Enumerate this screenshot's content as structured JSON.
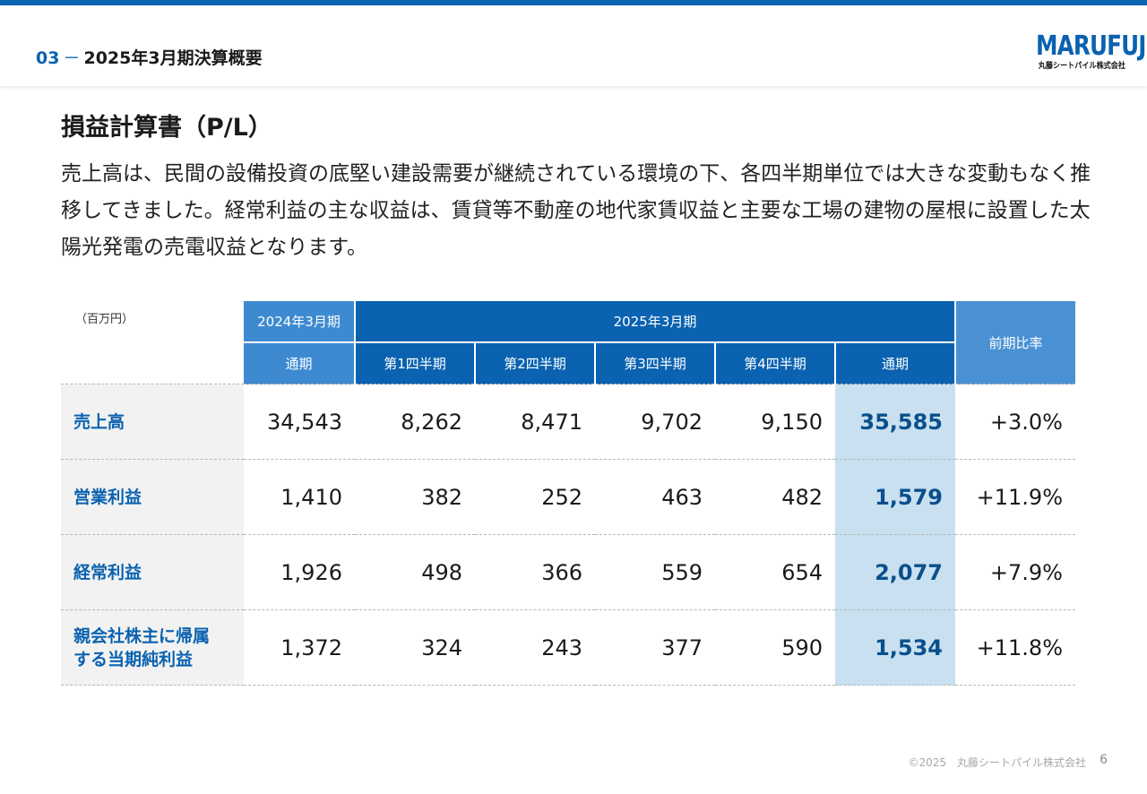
{
  "header": {
    "section_number": "03",
    "section_dash": "－",
    "section_title": "2025年3月期決算概要",
    "logo_text": "MARUFUJI",
    "logo_subtext": "丸藤シートパイル株式会社"
  },
  "page_heading": "損益計算書（P/L）",
  "lead_text": "売上高は、民間の設備投資の底堅い建設需要が継続されている環境の下、各四半期単位では大きな変動もなく推移してきました。経常利益の主な収益は、賃貸等不動産の地代家賃収益と主要な工場の建物の屋根に設置した太陽光発電の売電収益となります。",
  "table": {
    "unit": "（百万円）",
    "header_prev_year": "2024年3月期",
    "header_curr_year": "2025年3月期",
    "header_ratio": "前期比率",
    "sub_headers": [
      "通期",
      "第1四半期",
      "第2四半期",
      "第3四半期",
      "第4四半期",
      "通期"
    ],
    "rows": [
      {
        "label": "売上高",
        "values": [
          "34,543",
          "8,262",
          "8,471",
          "9,702",
          "9,150",
          "35,585"
        ],
        "ratio": "+3.0%"
      },
      {
        "label": "営業利益",
        "values": [
          "1,410",
          "382",
          "252",
          "463",
          "482",
          "1,579"
        ],
        "ratio": "+11.9%"
      },
      {
        "label": "経常利益",
        "values": [
          "1,926",
          "498",
          "366",
          "559",
          "654",
          "2,077"
        ],
        "ratio": "+7.9%"
      },
      {
        "label": "親会社株主に帰属する当期純利益",
        "label_line1": "親会社株主に帰属",
        "label_line2": "する当期純利益",
        "values": [
          "1,372",
          "324",
          "243",
          "377",
          "590",
          "1,534"
        ],
        "ratio": "+11.8%"
      }
    ]
  },
  "footer": {
    "copyright": "©2025　丸藤シートパイル株式会社",
    "page_number": "6"
  },
  "colors": {
    "brand_blue": "#0a62b0",
    "header_light": "#4a91d3",
    "highlight": "#c9e0f0"
  }
}
